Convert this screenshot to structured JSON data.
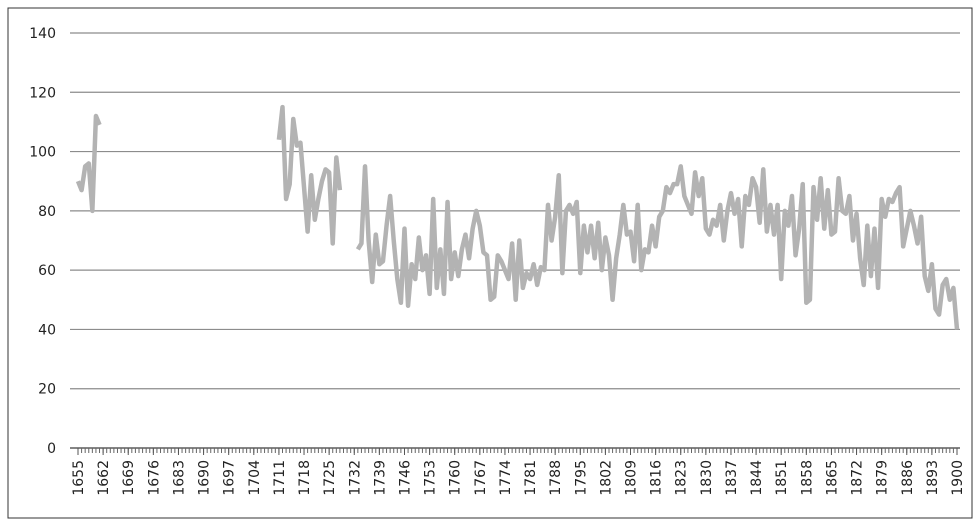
{
  "chart_data": {
    "type": "line",
    "x": [
      1655,
      1656,
      1657,
      1658,
      1659,
      1660,
      1661,
      1662,
      1663,
      1664,
      1665,
      1666,
      1667,
      1668,
      1669,
      1670,
      1671,
      1672,
      1673,
      1674,
      1675,
      1676,
      1677,
      1678,
      1679,
      1680,
      1681,
      1682,
      1683,
      1684,
      1685,
      1686,
      1687,
      1688,
      1689,
      1690,
      1691,
      1692,
      1693,
      1694,
      1695,
      1696,
      1697,
      1698,
      1699,
      1700,
      1701,
      1702,
      1703,
      1704,
      1705,
      1706,
      1707,
      1708,
      1709,
      1710,
      1711,
      1712,
      1713,
      1714,
      1715,
      1716,
      1717,
      1718,
      1719,
      1720,
      1721,
      1722,
      1723,
      1724,
      1725,
      1726,
      1727,
      1728,
      1729,
      1730,
      1731,
      1732,
      1733,
      1734,
      1735,
      1736,
      1737,
      1738,
      1739,
      1740,
      1741,
      1742,
      1743,
      1744,
      1745,
      1746,
      1747,
      1748,
      1749,
      1750,
      1751,
      1752,
      1753,
      1754,
      1755,
      1756,
      1757,
      1758,
      1759,
      1760,
      1761,
      1762,
      1763,
      1764,
      1765,
      1766,
      1767,
      1768,
      1769,
      1770,
      1771,
      1772,
      1773,
      1774,
      1775,
      1776,
      1777,
      1778,
      1779,
      1780,
      1781,
      1782,
      1783,
      1784,
      1785,
      1786,
      1787,
      1788,
      1789,
      1790,
      1791,
      1792,
      1793,
      1794,
      1795,
      1796,
      1797,
      1798,
      1799,
      1800,
      1801,
      1802,
      1803,
      1804,
      1805,
      1806,
      1807,
      1808,
      1809,
      1810,
      1811,
      1812,
      1813,
      1814,
      1815,
      1816,
      1817,
      1818,
      1819,
      1820,
      1821,
      1822,
      1823,
      1824,
      1825,
      1826,
      1827,
      1828,
      1829,
      1830,
      1831,
      1832,
      1833,
      1834,
      1835,
      1836,
      1837,
      1838,
      1839,
      1840,
      1841,
      1842,
      1843,
      1844,
      1845,
      1846,
      1847,
      1848,
      1849,
      1850,
      1851,
      1852,
      1853,
      1854,
      1855,
      1856,
      1857,
      1858,
      1859,
      1860,
      1861,
      1862,
      1863,
      1864,
      1865,
      1866,
      1867,
      1868,
      1869,
      1870,
      1871,
      1872,
      1873,
      1874,
      1875,
      1876,
      1877,
      1878,
      1879,
      1880,
      1881,
      1882,
      1883,
      1884,
      1885,
      1886,
      1887,
      1888,
      1889,
      1890,
      1891,
      1892,
      1893,
      1894,
      1895,
      1896,
      1897,
      1898,
      1899,
      1900
    ],
    "series": [
      {
        "color": "#b3b3b3",
        "values": [
          90,
          87,
          95,
          96,
          80,
          112,
          109,
          null,
          null,
          null,
          null,
          null,
          null,
          null,
          null,
          null,
          null,
          null,
          null,
          null,
          null,
          null,
          null,
          null,
          null,
          null,
          null,
          null,
          null,
          null,
          null,
          null,
          null,
          null,
          null,
          null,
          null,
          null,
          null,
          null,
          null,
          null,
          null,
          null,
          null,
          null,
          null,
          null,
          null,
          null,
          null,
          null,
          null,
          null,
          null,
          null,
          104,
          115,
          84,
          89,
          111,
          102,
          103,
          88,
          73,
          92,
          77,
          84,
          90,
          94,
          93,
          69,
          98,
          87,
          null,
          null,
          null,
          null,
          67,
          69,
          95,
          70,
          56,
          72,
          62,
          63,
          75,
          85,
          70,
          57,
          49,
          74,
          48,
          62,
          57,
          71,
          60,
          65,
          52,
          84,
          54,
          67,
          52,
          83,
          57,
          66,
          58,
          67,
          72,
          64,
          74,
          80,
          75,
          66,
          65,
          50,
          51,
          65,
          63,
          60,
          57,
          69,
          50,
          70,
          54,
          59,
          57,
          62,
          55,
          61,
          60,
          82,
          70,
          78,
          92,
          59,
          80,
          82,
          79,
          83,
          59,
          75,
          66,
          75,
          64,
          76,
          60,
          71,
          65,
          50,
          64,
          72,
          82,
          72,
          73,
          63,
          82,
          60,
          67,
          66,
          75,
          68,
          78,
          80,
          88,
          86,
          89,
          89,
          95,
          85,
          82,
          79,
          93,
          85,
          91,
          74,
          72,
          77,
          75,
          82,
          70,
          80,
          86,
          79,
          84,
          68,
          85,
          82,
          91,
          88,
          76,
          94,
          73,
          82,
          72,
          82,
          57,
          80,
          75,
          85,
          65,
          74,
          89,
          49,
          50,
          88,
          77,
          91,
          74,
          87,
          72,
          73,
          91,
          80,
          79,
          85,
          70,
          79,
          64,
          55,
          75,
          58,
          74,
          54,
          84,
          78,
          84,
          83,
          86,
          88,
          68,
          74,
          80,
          75,
          69,
          78,
          58,
          53,
          62,
          47,
          45,
          55,
          57,
          50,
          54,
          40
        ]
      }
    ],
    "xlim": [
      1655,
      1900
    ],
    "xticks": [
      1655,
      1662,
      1669,
      1676,
      1683,
      1690,
      1697,
      1704,
      1711,
      1718,
      1725,
      1732,
      1739,
      1746,
      1753,
      1760,
      1767,
      1774,
      1781,
      1788,
      1795,
      1802,
      1809,
      1816,
      1823,
      1830,
      1837,
      1844,
      1851,
      1858,
      1865,
      1872,
      1879,
      1886,
      1893,
      1900
    ],
    "ylim": [
      0,
      140
    ],
    "yticks": [
      0,
      20,
      40,
      60,
      80,
      100,
      120,
      140
    ],
    "grid": true
  }
}
